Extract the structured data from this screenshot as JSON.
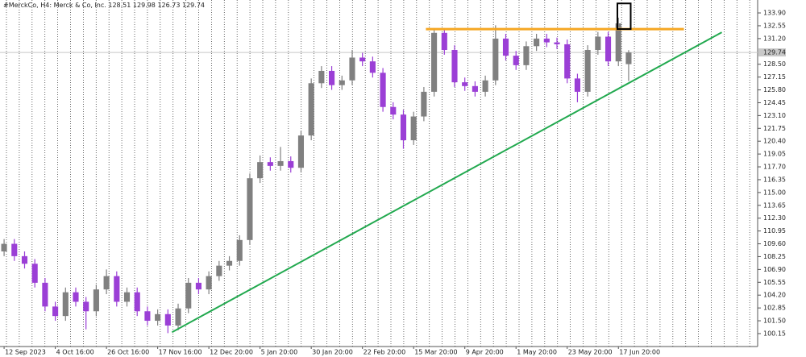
{
  "chart_data": {
    "type": "candlestick",
    "title": "#MerckCo, H4:  Merck & Co, Inc.",
    "categories": [
      "12 Sep 2023",
      null,
      null,
      null,
      null,
      "4 Oct 16:00",
      null,
      null,
      null,
      null,
      "26 Oct 16:00",
      null,
      null,
      null,
      null,
      "17 Nov 16:00",
      null,
      null,
      null,
      null,
      "12 Dec 20:00",
      null,
      null,
      null,
      null,
      "5 Jan 20:00",
      null,
      null,
      null,
      null,
      "30 Jan 20:00",
      null,
      null,
      null,
      null,
      "22 Feb 20:00",
      null,
      null,
      null,
      null,
      "15 Mar 20:00",
      null,
      null,
      null,
      null,
      "9 Apr 20:00",
      null,
      null,
      null,
      null,
      "1 May 20:00",
      null,
      null,
      null,
      null,
      "23 May 20:00",
      null,
      null,
      null,
      null,
      "17 Jun 20:00",
      null
    ],
    "open": [
      108.8,
      109.6,
      108.3,
      107.5,
      105.5,
      103,
      102,
      104.5,
      103.5,
      102.5,
      104.8,
      106.2,
      103.5,
      104.5,
      102.5,
      101.5,
      102.2,
      101,
      102.8,
      105.5,
      104.8,
      106.2,
      107.3,
      107.8,
      110,
      116.5,
      118.2,
      117.8,
      118.3,
      117.6,
      121,
      126.5,
      127.8,
      126.3,
      126.8,
      129.2,
      128.8,
      127.6,
      124,
      123.2,
      120.5,
      123,
      125.6,
      131.8,
      130,
      126.6,
      126.2,
      125.6,
      126.8,
      131.2,
      129.4,
      128.4,
      130.4,
      131.2,
      130.8,
      130.6,
      127,
      125.6,
      130,
      131.4,
      128.8,
      128.51
    ],
    "high": [
      110.1,
      110.1,
      108.8,
      108,
      106,
      103.5,
      105,
      105,
      104,
      105.3,
      106.9,
      106.7,
      105,
      105,
      103,
      102.7,
      102.7,
      103.3,
      106,
      106,
      106.7,
      107.8,
      108.3,
      110.5,
      117,
      118.9,
      118.7,
      119.8,
      118.8,
      121.5,
      127,
      128.3,
      128.3,
      127.3,
      130,
      129.7,
      129.3,
      128.1,
      124.5,
      123.7,
      123.5,
      126.1,
      132.3,
      132.3,
      130.5,
      127.1,
      126.7,
      127.3,
      132.6,
      131.7,
      129.9,
      130.9,
      131.7,
      131.7,
      131.3,
      131.1,
      127.5,
      130.5,
      131.9,
      131.9,
      133.4,
      129.98
    ],
    "low": [
      108.3,
      107.8,
      107,
      105,
      102.5,
      101.5,
      101.5,
      103,
      100.6,
      102,
      104.3,
      103,
      103,
      102,
      101,
      101,
      100.2,
      100.5,
      102.3,
      104.3,
      104.3,
      105.7,
      106.8,
      107.3,
      109.5,
      116,
      117.3,
      117.3,
      117.1,
      117.1,
      120.5,
      126,
      125.8,
      125.8,
      126.3,
      128.3,
      127.1,
      123.5,
      122.7,
      119.6,
      120,
      122.5,
      125.1,
      129.5,
      126.1,
      125.7,
      125.1,
      125.1,
      126.3,
      128.9,
      127.9,
      127.9,
      129.9,
      130.3,
      130.1,
      126.5,
      124.5,
      125.1,
      129.5,
      128.3,
      128.3,
      126.73
    ],
    "close": [
      109.6,
      108.3,
      107.5,
      105.5,
      103,
      102,
      104.5,
      103.5,
      102.5,
      104.8,
      106.2,
      103.5,
      104.5,
      102.5,
      101.5,
      102.2,
      101,
      102.8,
      105.5,
      104.8,
      106.2,
      107.3,
      107.8,
      110,
      116.5,
      118.2,
      117.8,
      118.3,
      117.6,
      121,
      126.5,
      127.8,
      126.3,
      126.8,
      129.2,
      128.8,
      127.6,
      124,
      123.2,
      120.5,
      123,
      125.6,
      131.8,
      130,
      126.6,
      126.2,
      125.6,
      126.8,
      131.2,
      129.4,
      128.4,
      130.4,
      131.2,
      130.8,
      130.6,
      127,
      125.6,
      130,
      131.4,
      128.8,
      132.8,
      129.74
    ],
    "up_color": "#808080",
    "down_color": "#9b3fd6",
    "xlim": [
      -0.4,
      73.6
    ],
    "ylim": [
      98.79,
      135.26
    ],
    "yticks": [
      100.15,
      {
        "value": 101.5,
        "label": "101.50"
      },
      102.85,
      {
        "value": 104.2,
        "label": "104.20"
      },
      105.55,
      {
        "value": 106.9,
        "label": "106.90"
      },
      108.25,
      {
        "value": 109.6,
        "label": "109.60"
      },
      110.95,
      {
        "value": 112.3,
        "label": "112.30"
      },
      113.65,
      {
        "value": 115,
        "label": "115.00"
      },
      116.35,
      {
        "value": 117.7,
        "label": "117.70"
      },
      119.05,
      {
        "value": 120.4,
        "label": "120.40"
      },
      121.75,
      {
        "value": 123.1,
        "label": "123.10"
      },
      124.45,
      {
        "value": 125.8,
        "label": "125.80"
      },
      127.15,
      {
        "value": 128.5,
        "label": "128.50"
      },
      {
        "value": 131.2,
        "label": "131.20"
      },
      132.55,
      {
        "value": 133.9,
        "label": "133.90"
      }
    ],
    "annotations": {
      "resistance": {
        "color": "#f5a623",
        "price": 132.2,
        "x": [
          41.2,
          66.4
        ]
      },
      "trendline": {
        "color": "#22a94f",
        "x": [
          16.4,
          70.1
        ],
        "y": [
          100.3,
          131.86
        ]
      },
      "highlight": {
        "color": "#000000",
        "x": [
          59.9,
          61.2
        ],
        "y": [
          132.2,
          134.9
        ]
      }
    }
  }
}
